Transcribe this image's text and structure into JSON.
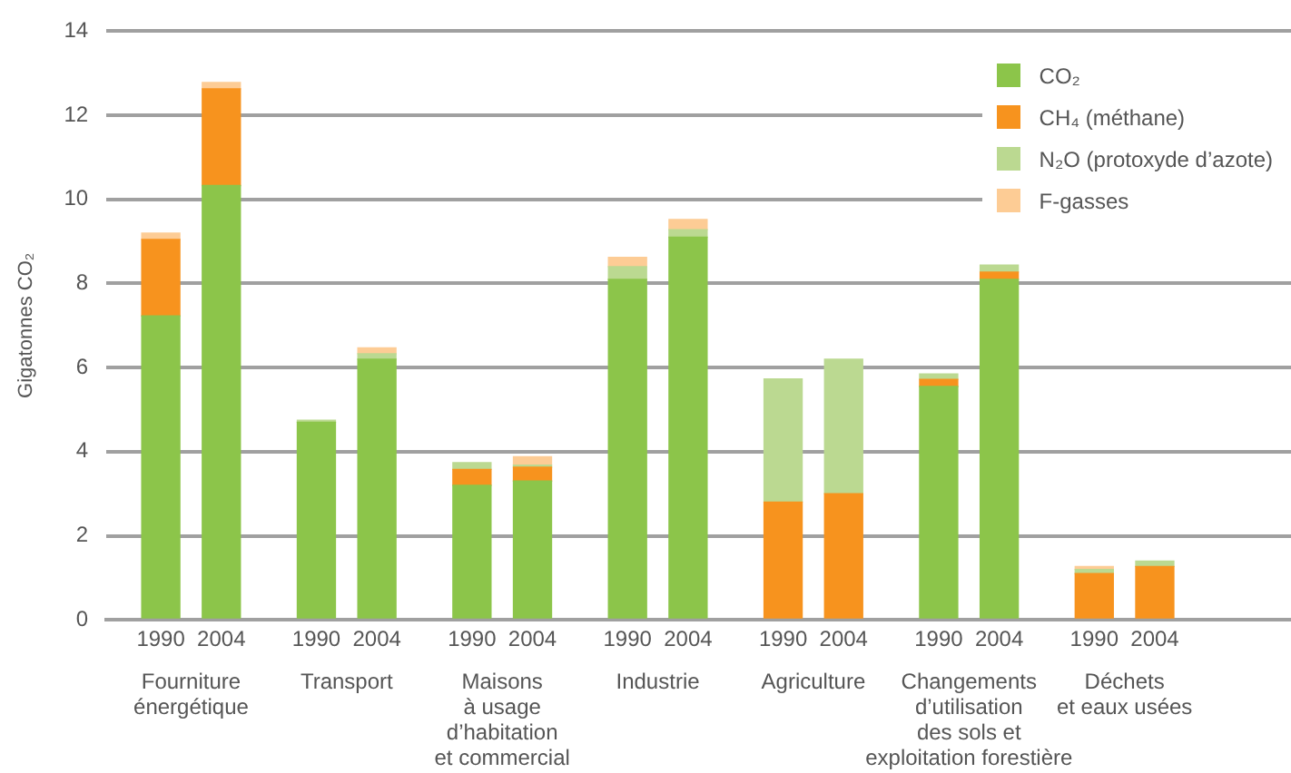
{
  "chart_data": {
    "type": "bar",
    "stacked": true,
    "ylabel": "Gigatonnes CO₂",
    "categories": [
      "1990",
      "2004",
      "1990",
      "2004",
      "1990",
      "2004",
      "1990",
      "2004",
      "1990",
      "2004",
      "1990",
      "2004",
      "1990",
      "2004"
    ],
    "series": [
      {
        "name": "CO₂",
        "color": "#8cc54a",
        "values": [
          7.23,
          10.33,
          4.7,
          6.2,
          3.2,
          3.3,
          8.1,
          9.1,
          null,
          null,
          5.55,
          8.1,
          null,
          null
        ]
      },
      {
        "name": "CH₄ (méthane)",
        "color": "#f7931e",
        "values": [
          1.82,
          2.3,
          null,
          null,
          0.38,
          0.33,
          null,
          null,
          2.8,
          3.0,
          0.17,
          0.17,
          1.1,
          1.27
        ]
      },
      {
        "name": "N₂O (protoxyde d’azote)",
        "color": "#bbd991",
        "values": [
          null,
          null,
          0.05,
          0.13,
          0.16,
          0.05,
          0.3,
          0.18,
          2.93,
          3.2,
          0.13,
          0.17,
          0.1,
          0.13
        ]
      },
      {
        "name": "F-gasses",
        "color": "#fdcc95",
        "values": [
          0.15,
          0.15,
          null,
          0.14,
          null,
          0.2,
          0.22,
          0.24,
          null,
          null,
          null,
          null,
          0.07,
          null
        ]
      }
    ],
    "ylim": [
      0,
      14
    ],
    "yticks": [
      0,
      2,
      4,
      6,
      8,
      10,
      12,
      14
    ],
    "grid": "y",
    "legend": "top right",
    "annotations": [
      "Fourniture\nénergétique",
      "Transport",
      "Maisons\nà usage\nd’habitation\net commercial",
      "Industrie",
      "Agriculture",
      "Changements\nd’utilisation\ndes sols et\nexploitation forestière",
      "Déchets\net eaux usées"
    ]
  }
}
